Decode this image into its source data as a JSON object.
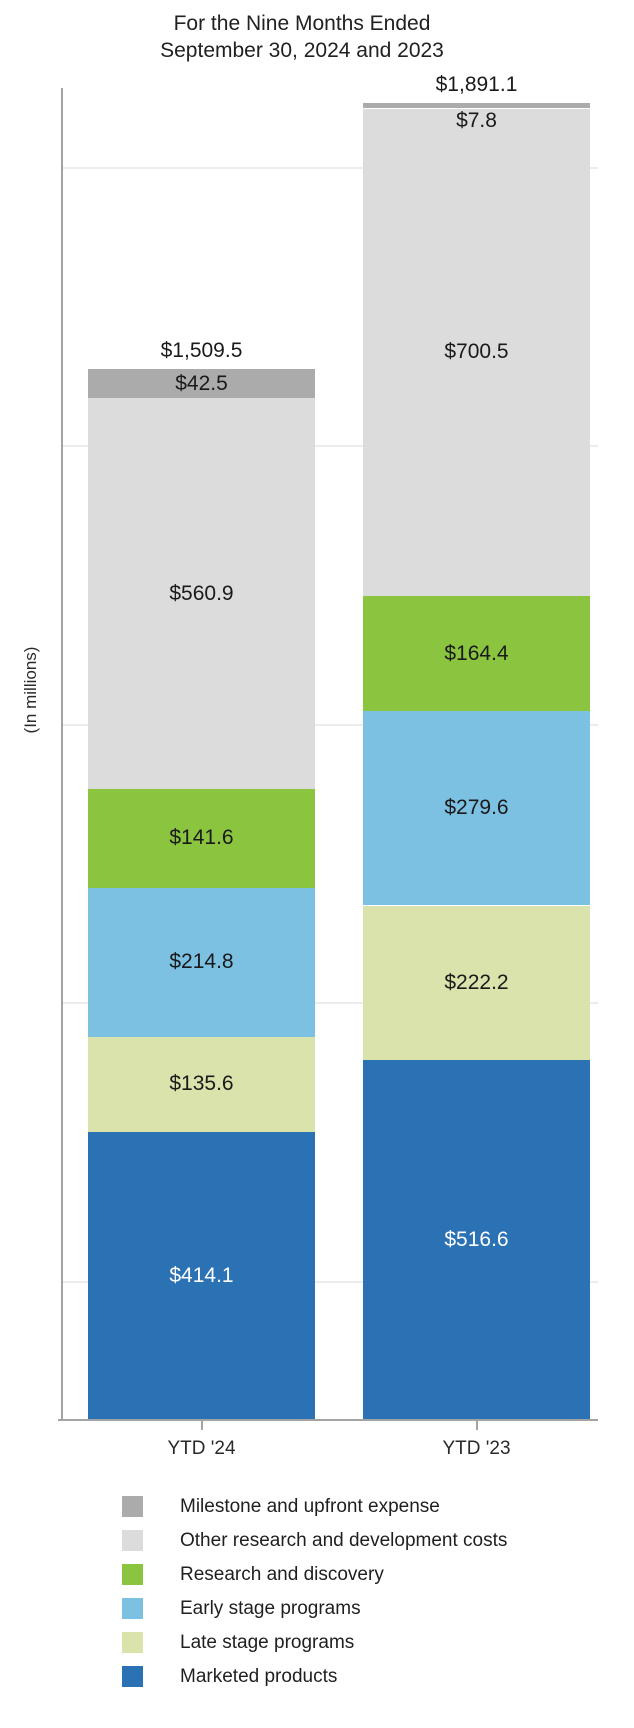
{
  "title": {
    "line1": "For the Nine Months Ended",
    "line2": "September 30, 2024 and 2023"
  },
  "y_axis_label": "(In millions)",
  "chart_data": {
    "type": "bar",
    "stacked": true,
    "unit": "USD millions",
    "title": "For the Nine Months Ended September 30, 2024 and 2023",
    "xlabel": "",
    "ylabel": "(In millions)",
    "categories": [
      "YTD '24",
      "YTD '23"
    ],
    "totals": {
      "values": [
        1509.5,
        1891.1
      ],
      "labels": [
        "$1,509.5",
        "$1,891.1"
      ]
    },
    "series": [
      {
        "name": "Milestone and upfront expense",
        "color": "#ababab",
        "values": [
          42.5,
          7.8
        ],
        "labels": [
          "$42.5",
          "$7.8"
        ],
        "label_color": "#1a1a1a"
      },
      {
        "name": "Other research and development costs",
        "color": "#dcdcdc",
        "values": [
          560.9,
          700.5
        ],
        "labels": [
          "$560.9",
          "$700.5"
        ],
        "label_color": "#1a1a1a"
      },
      {
        "name": "Research and discovery",
        "color": "#8bc53f",
        "values": [
          141.6,
          164.4
        ],
        "labels": [
          "$141.6",
          "$164.4"
        ],
        "label_color": "#1a1a1a"
      },
      {
        "name": "Early stage programs",
        "color": "#7cc0e2",
        "values": [
          214.8,
          279.6
        ],
        "labels": [
          "$214.8",
          "$279.6"
        ],
        "label_color": "#1a1a1a"
      },
      {
        "name": "Late stage programs",
        "color": "#dae3ab",
        "values": [
          135.6,
          222.2
        ],
        "labels": [
          "$135.6",
          "$222.2"
        ],
        "label_color": "#1a1a1a"
      },
      {
        "name": "Marketed products",
        "color": "#2b72b5",
        "values": [
          414.1,
          516.6
        ],
        "labels": [
          "$414.1",
          "$516.6"
        ],
        "label_color": "#ffffff"
      }
    ],
    "ylim": [
      0,
      1900
    ],
    "gridline_values": [
      200,
      600,
      1000,
      1400,
      1800
    ],
    "grid_on": true,
    "legend_position": "bottom",
    "axis_color": "#a3a3a3",
    "grid_color": "#ececec"
  },
  "legend": {
    "items": [
      "Milestone and upfront expense",
      "Other research and development costs",
      "Research and discovery",
      "Early stage programs",
      "Late stage programs",
      "Marketed products"
    ]
  }
}
